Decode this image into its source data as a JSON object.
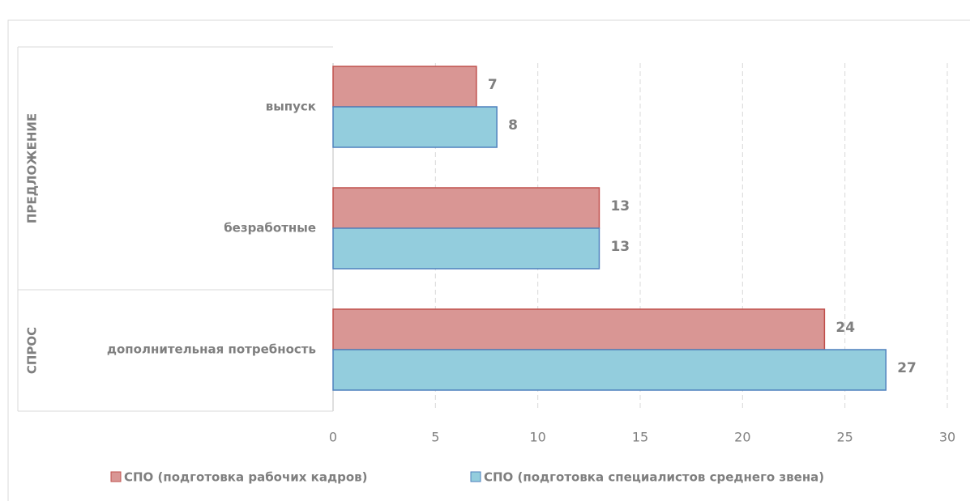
{
  "chart_data": {
    "type": "bar",
    "orientation": "horizontal",
    "groups": [
      {
        "name": "ПРЕДЛОЖЕНИЕ",
        "categories": [
          "выпуск",
          "безработные"
        ]
      },
      {
        "name": "СПРОС",
        "categories": [
          "дополнительная потребность"
        ]
      }
    ],
    "series": [
      {
        "name": "СПО (подготовка рабочих кадров)",
        "color": "#d99694",
        "values": [
          7,
          13,
          24
        ]
      },
      {
        "name": "СПО (подготовка специалистов среднего звена)",
        "color": "#93cddd",
        "values": [
          8,
          13,
          27
        ]
      }
    ],
    "xlim": [
      0,
      30
    ],
    "xticks": [
      0,
      5,
      10,
      15,
      20,
      25,
      30
    ],
    "grid": true,
    "legend": "bottom"
  }
}
